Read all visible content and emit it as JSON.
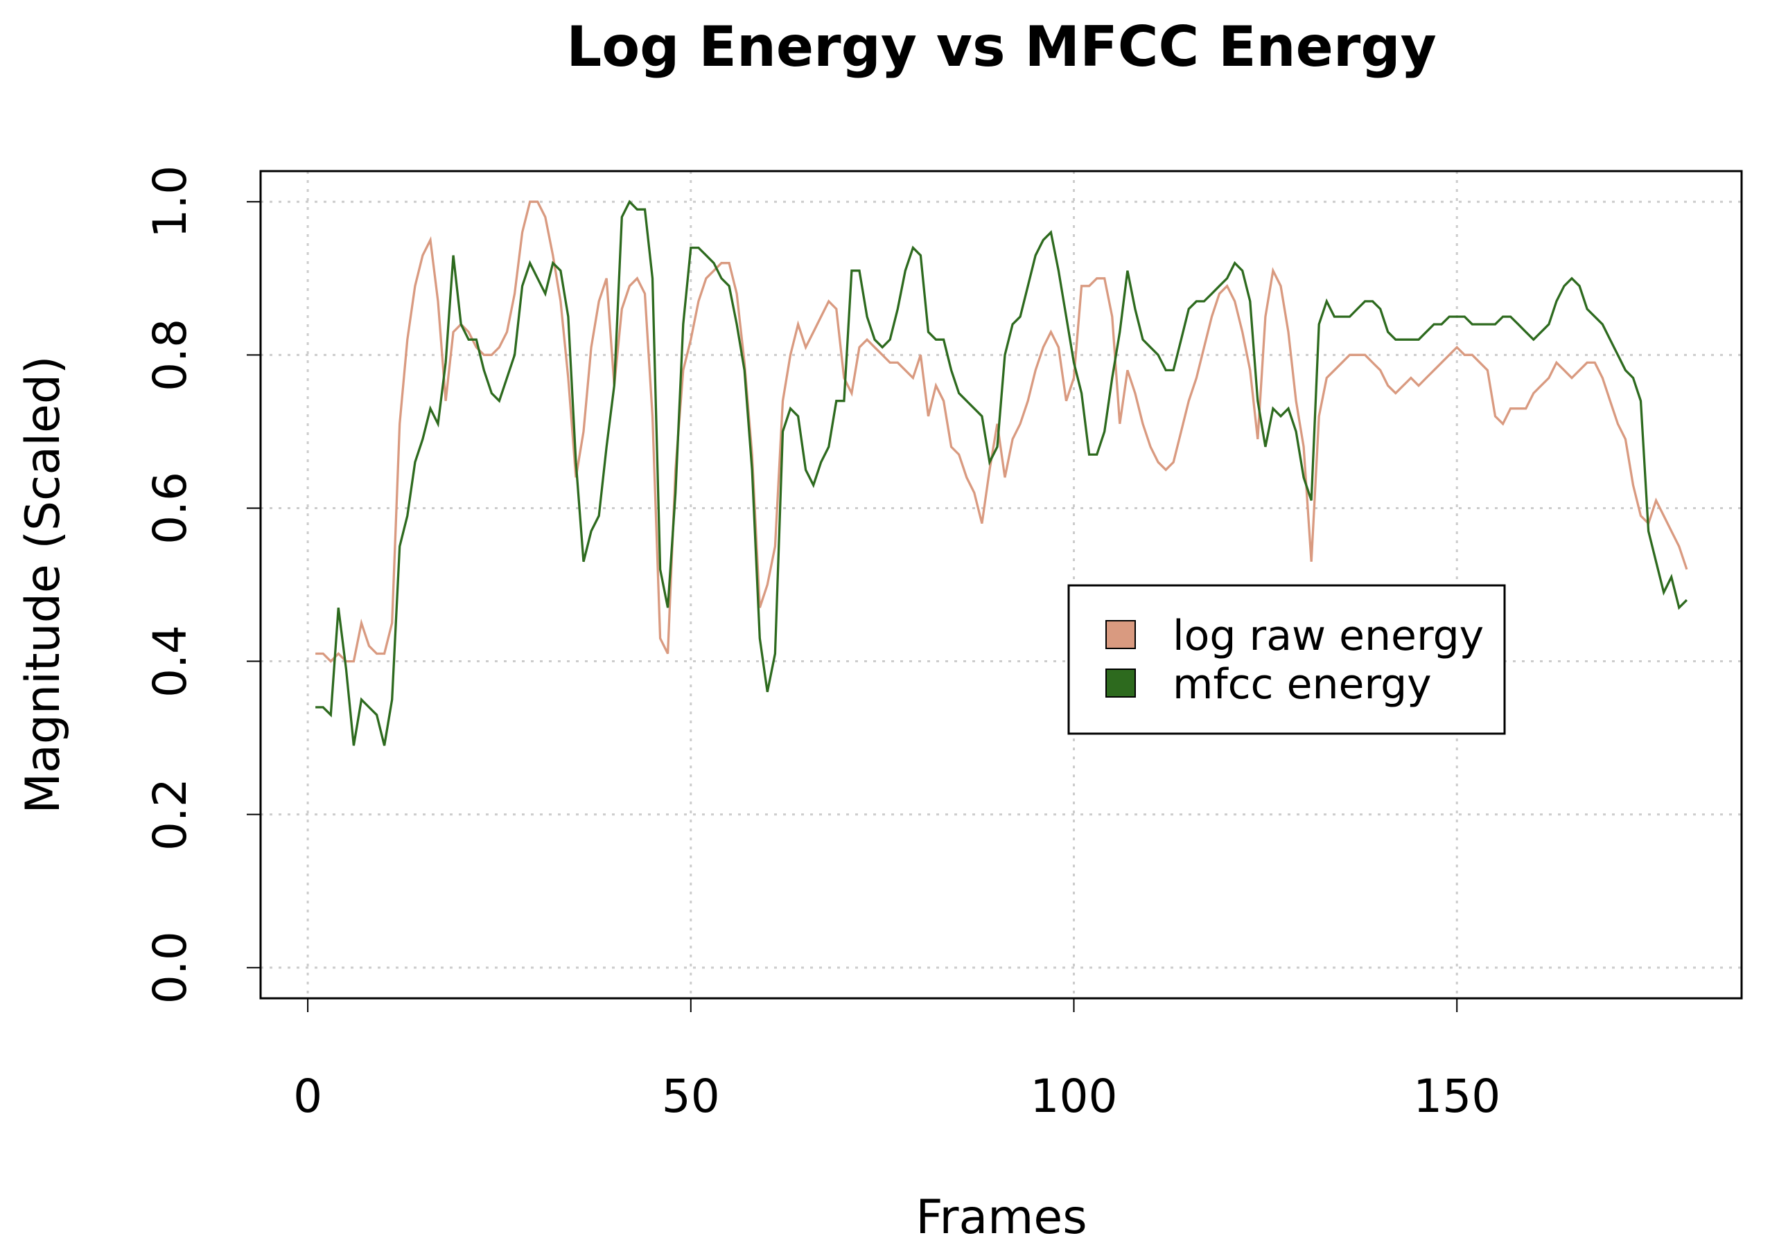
{
  "chart_data": {
    "type": "line",
    "title": "Log Energy vs MFCC Energy",
    "x_label": "Frames",
    "y_label": "Magnitude (Scaled)",
    "x": [
      1,
      2,
      3,
      4,
      5,
      6,
      7,
      8,
      9,
      10,
      11,
      12,
      13,
      14,
      15,
      16,
      17,
      18,
      19,
      20,
      21,
      22,
      23,
      24,
      25,
      26,
      27,
      28,
      29,
      30,
      31,
      32,
      33,
      34,
      35,
      36,
      37,
      38,
      39,
      40,
      41,
      42,
      43,
      44,
      45,
      46,
      47,
      48,
      49,
      50,
      51,
      52,
      53,
      54,
      55,
      56,
      57,
      58,
      59,
      60,
      61,
      62,
      63,
      64,
      65,
      66,
      67,
      68,
      69,
      70,
      71,
      72,
      73,
      74,
      75,
      76,
      77,
      78,
      79,
      80,
      81,
      82,
      83,
      84,
      85,
      86,
      87,
      88,
      89,
      90,
      91,
      92,
      93,
      94,
      95,
      96,
      97,
      98,
      99,
      100,
      101,
      102,
      103,
      104,
      105,
      106,
      107,
      108,
      109,
      110,
      111,
      112,
      113,
      114,
      115,
      116,
      117,
      118,
      119,
      120,
      121,
      122,
      123,
      124,
      125,
      126,
      127,
      128,
      129,
      130,
      131,
      132,
      133,
      134,
      135,
      136,
      137,
      138,
      139,
      140,
      141,
      142,
      143,
      144,
      145,
      146,
      147,
      148,
      149,
      150,
      151,
      152,
      153,
      154,
      155,
      156,
      157,
      158,
      159,
      160,
      161,
      162,
      163,
      164,
      165,
      166,
      167,
      168,
      169,
      170,
      171,
      172,
      173,
      174,
      175,
      176,
      177,
      178,
      179,
      180
    ],
    "series": [
      {
        "name": "log raw energy",
        "color": "#d99a80",
        "values": [
          0.41,
          0.41,
          0.4,
          0.41,
          0.4,
          0.4,
          0.45,
          0.42,
          0.41,
          0.41,
          0.45,
          0.71,
          0.82,
          0.89,
          0.93,
          0.95,
          0.87,
          0.74,
          0.83,
          0.84,
          0.83,
          0.81,
          0.8,
          0.8,
          0.81,
          0.83,
          0.88,
          0.96,
          1.0,
          1.0,
          0.98,
          0.93,
          0.87,
          0.77,
          0.64,
          0.7,
          0.81,
          0.87,
          0.9,
          0.76,
          0.86,
          0.89,
          0.9,
          0.88,
          0.72,
          0.43,
          0.41,
          0.65,
          0.78,
          0.82,
          0.87,
          0.9,
          0.91,
          0.92,
          0.92,
          0.88,
          0.79,
          0.67,
          0.47,
          0.5,
          0.55,
          0.74,
          0.8,
          0.84,
          0.81,
          0.83,
          0.85,
          0.87,
          0.86,
          0.77,
          0.75,
          0.81,
          0.82,
          0.81,
          0.8,
          0.79,
          0.79,
          0.78,
          0.77,
          0.8,
          0.72,
          0.76,
          0.74,
          0.68,
          0.67,
          0.64,
          0.62,
          0.58,
          0.65,
          0.71,
          0.64,
          0.69,
          0.71,
          0.74,
          0.78,
          0.81,
          0.83,
          0.81,
          0.74,
          0.77,
          0.89,
          0.89,
          0.9,
          0.9,
          0.85,
          0.71,
          0.78,
          0.75,
          0.71,
          0.68,
          0.66,
          0.65,
          0.66,
          0.7,
          0.74,
          0.77,
          0.81,
          0.85,
          0.88,
          0.89,
          0.87,
          0.83,
          0.78,
          0.69,
          0.85,
          0.91,
          0.89,
          0.83,
          0.74,
          0.68,
          0.53,
          0.72,
          0.77,
          0.78,
          0.79,
          0.8,
          0.8,
          0.8,
          0.79,
          0.78,
          0.76,
          0.75,
          0.76,
          0.77,
          0.76,
          0.77,
          0.78,
          0.79,
          0.8,
          0.81,
          0.8,
          0.8,
          0.79,
          0.78,
          0.72,
          0.71,
          0.73,
          0.73,
          0.73,
          0.75,
          0.76,
          0.77,
          0.79,
          0.78,
          0.77,
          0.78,
          0.79,
          0.79,
          0.77,
          0.74,
          0.71,
          0.69,
          0.63,
          0.59,
          0.58,
          0.61,
          0.59,
          0.57,
          0.55,
          0.52
        ]
      },
      {
        "name": "mfcc energy",
        "color": "#2d6a1e",
        "values": [
          0.34,
          0.34,
          0.33,
          0.47,
          0.39,
          0.29,
          0.35,
          0.34,
          0.33,
          0.29,
          0.35,
          0.55,
          0.59,
          0.66,
          0.69,
          0.73,
          0.71,
          0.79,
          0.93,
          0.84,
          0.82,
          0.82,
          0.78,
          0.75,
          0.74,
          0.77,
          0.8,
          0.89,
          0.92,
          0.9,
          0.88,
          0.92,
          0.91,
          0.85,
          0.66,
          0.53,
          0.57,
          0.59,
          0.68,
          0.76,
          0.98,
          1.0,
          0.99,
          0.99,
          0.9,
          0.52,
          0.47,
          0.62,
          0.84,
          0.94,
          0.94,
          0.93,
          0.92,
          0.9,
          0.89,
          0.84,
          0.78,
          0.65,
          0.43,
          0.36,
          0.41,
          0.7,
          0.73,
          0.72,
          0.65,
          0.63,
          0.66,
          0.68,
          0.74,
          0.74,
          0.91,
          0.91,
          0.85,
          0.82,
          0.81,
          0.82,
          0.86,
          0.91,
          0.94,
          0.93,
          0.83,
          0.82,
          0.82,
          0.78,
          0.75,
          0.74,
          0.73,
          0.72,
          0.66,
          0.68,
          0.8,
          0.84,
          0.85,
          0.89,
          0.93,
          0.95,
          0.96,
          0.91,
          0.85,
          0.79,
          0.75,
          0.67,
          0.67,
          0.7,
          0.77,
          0.83,
          0.91,
          0.86,
          0.82,
          0.81,
          0.8,
          0.78,
          0.78,
          0.82,
          0.86,
          0.87,
          0.87,
          0.88,
          0.89,
          0.9,
          0.92,
          0.91,
          0.87,
          0.74,
          0.68,
          0.73,
          0.72,
          0.73,
          0.7,
          0.64,
          0.61,
          0.84,
          0.87,
          0.85,
          0.85,
          0.85,
          0.86,
          0.87,
          0.87,
          0.86,
          0.83,
          0.82,
          0.82,
          0.82,
          0.82,
          0.83,
          0.84,
          0.84,
          0.85,
          0.85,
          0.85,
          0.84,
          0.84,
          0.84,
          0.84,
          0.85,
          0.85,
          0.84,
          0.83,
          0.82,
          0.83,
          0.84,
          0.87,
          0.89,
          0.9,
          0.89,
          0.86,
          0.85,
          0.84,
          0.82,
          0.8,
          0.78,
          0.77,
          0.74,
          0.57,
          0.53,
          0.49,
          0.51,
          0.47,
          0.48
        ]
      }
    ],
    "xlim": [
      -6.16,
      187.16
    ],
    "ylim": [
      -0.04,
      1.04
    ],
    "xticks": [
      0,
      50,
      100,
      150
    ],
    "yticks": [
      {
        "value": 0,
        "label": "0.0"
      },
      {
        "value": 0.2,
        "label": "0.2"
      },
      {
        "value": 0.4,
        "label": "0.4"
      },
      {
        "value": 0.6,
        "label": "0.6"
      },
      {
        "value": 0.8,
        "label": "0.8"
      },
      {
        "value": 1,
        "label": "1.0"
      }
    ],
    "grid": true,
    "legend": "center-right"
  }
}
